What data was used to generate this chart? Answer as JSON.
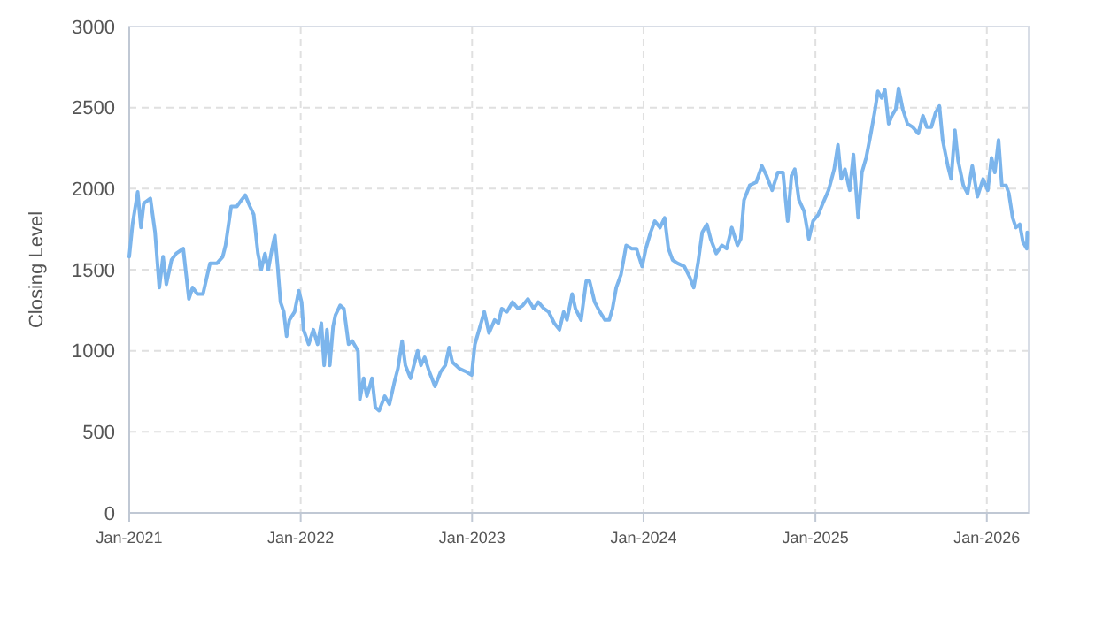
{
  "chart_data": {
    "type": "line",
    "ylabel": "Closing Level",
    "xlim": [
      "2021-01-01",
      "2026-03-31"
    ],
    "ylim": [
      0,
      3000
    ],
    "yticks": [
      0,
      500,
      1000,
      1500,
      2000,
      2500,
      3000
    ],
    "xticks": [
      {
        "value": "2021-01-01",
        "label": "Jan-2021"
      },
      {
        "value": "2022-01-01",
        "label": "Jan-2022"
      },
      {
        "value": "2023-01-01",
        "label": "Jan-2023"
      },
      {
        "value": "2024-01-01",
        "label": "Jan-2024"
      },
      {
        "value": "2025-01-01",
        "label": "Jan-2025"
      },
      {
        "value": "2026-01-01",
        "label": "Jan-2026"
      }
    ],
    "grid": true,
    "marker": "none",
    "line_style": "solid",
    "x": [
      "2021-01-01",
      "2021-01-08",
      "2021-01-19",
      "2021-01-26",
      "2021-02-01",
      "2021-02-15",
      "2021-02-25",
      "2021-03-06",
      "2021-03-14",
      "2021-03-21",
      "2021-04-01",
      "2021-04-11",
      "2021-04-26",
      "2021-05-08",
      "2021-05-16",
      "2021-05-26",
      "2021-06-07",
      "2021-06-22",
      "2021-07-07",
      "2021-07-19",
      "2021-07-25",
      "2021-08-06",
      "2021-08-18",
      "2021-08-28",
      "2021-09-05",
      "2021-09-15",
      "2021-09-23",
      "2021-10-02",
      "2021-10-09",
      "2021-10-17",
      "2021-10-24",
      "2021-11-01",
      "2021-11-07",
      "2021-11-13",
      "2021-11-19",
      "2021-11-26",
      "2021-12-02",
      "2021-12-08",
      "2021-12-19",
      "2021-12-28",
      "2022-01-03",
      "2022-01-07",
      "2022-01-18",
      "2022-01-28",
      "2022-02-06",
      "2022-02-14",
      "2022-02-20",
      "2022-02-26",
      "2022-03-04",
      "2022-03-11",
      "2022-03-16",
      "2022-03-26",
      "2022-04-03",
      "2022-04-13",
      "2022-04-21",
      "2022-05-03",
      "2022-05-07",
      "2022-05-15",
      "2022-05-22",
      "2022-06-02",
      "2022-06-09",
      "2022-06-17",
      "2022-06-29",
      "2022-07-09",
      "2022-07-19",
      "2022-07-27",
      "2022-08-05",
      "2022-08-12",
      "2022-08-23",
      "2022-09-07",
      "2022-09-14",
      "2022-09-22",
      "2022-10-02",
      "2022-10-14",
      "2022-10-26",
      "2022-11-05",
      "2022-11-13",
      "2022-11-20",
      "2022-12-05",
      "2022-12-20",
      "2022-12-31",
      "2023-01-07",
      "2023-01-16",
      "2023-01-27",
      "2023-02-06",
      "2023-02-18",
      "2023-02-26",
      "2023-03-05",
      "2023-03-16",
      "2023-03-28",
      "2023-04-09",
      "2023-04-19",
      "2023-04-30",
      "2023-05-12",
      "2023-05-22",
      "2023-06-03",
      "2023-06-13",
      "2023-06-25",
      "2023-07-06",
      "2023-07-15",
      "2023-07-22",
      "2023-08-02",
      "2023-08-09",
      "2023-08-21",
      "2023-09-01",
      "2023-09-08",
      "2023-09-19",
      "2023-09-30",
      "2023-10-11",
      "2023-10-20",
      "2023-10-27",
      "2023-11-04",
      "2023-11-14",
      "2023-11-25",
      "2023-12-07",
      "2023-12-17",
      "2023-12-29",
      "2024-01-06",
      "2024-01-16",
      "2024-01-25",
      "2024-02-05",
      "2024-02-15",
      "2024-02-23",
      "2024-03-03",
      "2024-03-13",
      "2024-03-28",
      "2024-04-09",
      "2024-04-17",
      "2024-04-26",
      "2024-05-05",
      "2024-05-15",
      "2024-05-23",
      "2024-06-04",
      "2024-06-16",
      "2024-06-26",
      "2024-07-07",
      "2024-07-19",
      "2024-07-26",
      "2024-08-02",
      "2024-08-14",
      "2024-08-28",
      "2024-09-09",
      "2024-09-19",
      "2024-10-01",
      "2024-10-13",
      "2024-10-24",
      "2024-11-03",
      "2024-11-11",
      "2024-11-18",
      "2024-11-27",
      "2024-12-08",
      "2024-12-18",
      "2024-12-27",
      "2025-01-07",
      "2025-01-17",
      "2025-01-29",
      "2025-02-10",
      "2025-02-18",
      "2025-02-25",
      "2025-03-05",
      "2025-03-15",
      "2025-03-23",
      "2025-04-02",
      "2025-04-10",
      "2025-04-19",
      "2025-04-29",
      "2025-05-07",
      "2025-05-14",
      "2025-05-22",
      "2025-05-29",
      "2025-06-06",
      "2025-06-13",
      "2025-06-21",
      "2025-06-27",
      "2025-07-06",
      "2025-07-16",
      "2025-07-27",
      "2025-08-08",
      "2025-08-18",
      "2025-08-26",
      "2025-09-05",
      "2025-09-14",
      "2025-09-22",
      "2025-09-29",
      "2025-10-10",
      "2025-10-17",
      "2025-10-25",
      "2025-11-01",
      "2025-11-12",
      "2025-11-21",
      "2025-12-01",
      "2025-12-12",
      "2025-12-24",
      "2026-01-03",
      "2026-01-11",
      "2026-01-18",
      "2026-01-26",
      "2026-02-02",
      "2026-02-11",
      "2026-02-17",
      "2026-02-25",
      "2026-03-04",
      "2026-03-12",
      "2026-03-19",
      "2026-03-27",
      "2026-03-28"
    ],
    "series": [
      {
        "color": "#7cb5ec",
        "values": [
          1580,
          1780,
          1980,
          1760,
          1910,
          1940,
          1730,
          1390,
          1580,
          1410,
          1560,
          1600,
          1630,
          1320,
          1390,
          1350,
          1350,
          1540,
          1540,
          1580,
          1650,
          1890,
          1890,
          1930,
          1960,
          1890,
          1840,
          1600,
          1500,
          1600,
          1500,
          1630,
          1710,
          1520,
          1300,
          1240,
          1090,
          1190,
          1240,
          1370,
          1300,
          1130,
          1040,
          1130,
          1040,
          1170,
          910,
          1130,
          910,
          1150,
          1220,
          1280,
          1260,
          1040,
          1060,
          1000,
          700,
          830,
          720,
          830,
          650,
          630,
          720,
          670,
          800,
          890,
          1060,
          910,
          830,
          1000,
          910,
          960,
          870,
          780,
          870,
          910,
          1020,
          930,
          890,
          870,
          850,
          1040,
          1130,
          1240,
          1110,
          1190,
          1170,
          1260,
          1240,
          1300,
          1260,
          1280,
          1320,
          1260,
          1300,
          1260,
          1240,
          1170,
          1130,
          1240,
          1190,
          1350,
          1260,
          1190,
          1430,
          1430,
          1300,
          1240,
          1190,
          1190,
          1260,
          1390,
          1470,
          1650,
          1630,
          1630,
          1520,
          1630,
          1730,
          1800,
          1760,
          1820,
          1630,
          1560,
          1540,
          1520,
          1450,
          1390,
          1540,
          1730,
          1780,
          1690,
          1600,
          1650,
          1630,
          1760,
          1650,
          1690,
          1930,
          2020,
          2040,
          2140,
          2080,
          1990,
          2100,
          2100,
          1800,
          2080,
          2120,
          1930,
          1860,
          1690,
          1800,
          1840,
          1910,
          1990,
          2120,
          2270,
          2060,
          2120,
          1990,
          2210,
          1820,
          2100,
          2190,
          2340,
          2470,
          2600,
          2560,
          2610,
          2400,
          2450,
          2490,
          2620,
          2490,
          2400,
          2380,
          2340,
          2450,
          2380,
          2380,
          2470,
          2510,
          2300,
          2140,
          2060,
          2360,
          2170,
          2020,
          1970,
          2140,
          1950,
          2060,
          1990,
          2190,
          2100,
          2300,
          2020,
          2020,
          1970,
          1820,
          1760,
          1780,
          1670,
          1630,
          1730
        ]
      }
    ]
  }
}
